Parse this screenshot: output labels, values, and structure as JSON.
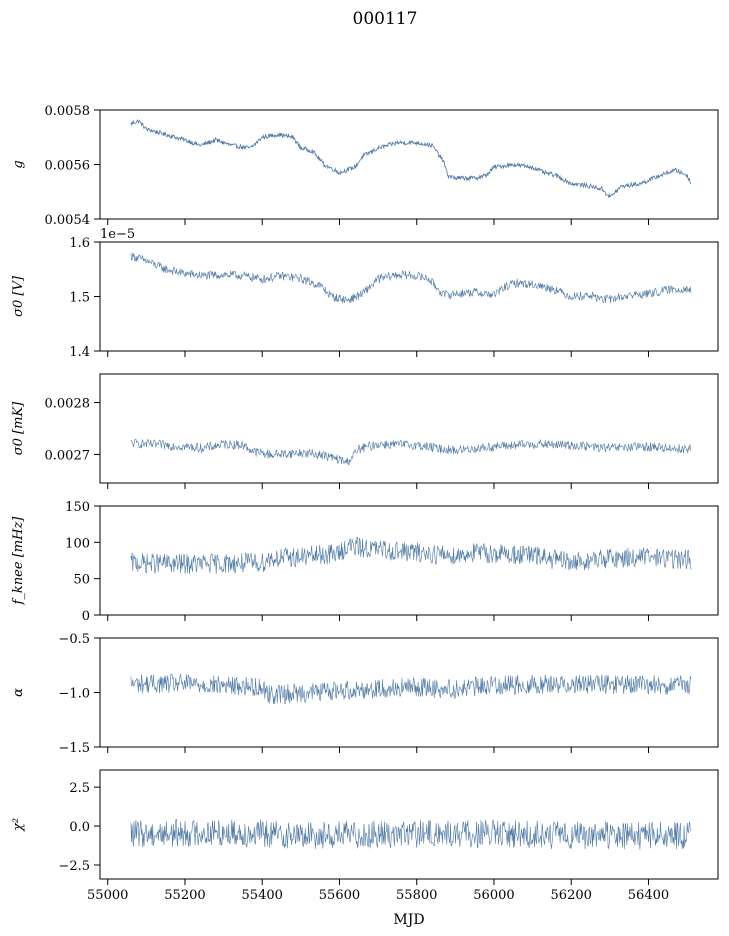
{
  "figure_title": "000117",
  "xlabel": "MJD",
  "xlim": [
    54980,
    56580
  ],
  "xticks": [
    55000,
    55200,
    55400,
    55600,
    55800,
    56000,
    56200,
    56400
  ],
  "series_color": "#4c77a5",
  "chart_data": [
    {
      "type": "line",
      "ylabel": "g",
      "ylim": [
        0.0054,
        0.0058
      ],
      "yticks": [
        {
          "v": 0.0054,
          "t": "0.0054"
        },
        {
          "v": 0.0056,
          "t": "0.0056"
        },
        {
          "v": 0.0058,
          "t": "0.0058"
        }
      ],
      "offset_text": "",
      "noise": 8e-06,
      "trend": [
        [
          55060,
          0.00575
        ],
        [
          55080,
          0.00576
        ],
        [
          55100,
          0.00573
        ],
        [
          55150,
          0.00571
        ],
        [
          55200,
          0.00569
        ],
        [
          55240,
          0.00567
        ],
        [
          55280,
          0.00569
        ],
        [
          55320,
          0.00567
        ],
        [
          55370,
          0.00566
        ],
        [
          55400,
          0.0057
        ],
        [
          55440,
          0.00571
        ],
        [
          55480,
          0.0057
        ],
        [
          55500,
          0.00566
        ],
        [
          55530,
          0.00565
        ],
        [
          55560,
          0.0056
        ],
        [
          55600,
          0.00557
        ],
        [
          55640,
          0.00559
        ],
        [
          55660,
          0.00563
        ],
        [
          55700,
          0.00566
        ],
        [
          55750,
          0.00568
        ],
        [
          55800,
          0.00568
        ],
        [
          55840,
          0.00567
        ],
        [
          55870,
          0.00561
        ],
        [
          55880,
          0.00556
        ],
        [
          55900,
          0.00555
        ],
        [
          55950,
          0.00555
        ],
        [
          55980,
          0.00556
        ],
        [
          56000,
          0.00559
        ],
        [
          56050,
          0.0056
        ],
        [
          56100,
          0.00559
        ],
        [
          56130,
          0.00557
        ],
        [
          56160,
          0.00556
        ],
        [
          56200,
          0.00553
        ],
        [
          56250,
          0.00552
        ],
        [
          56280,
          0.00551
        ],
        [
          56300,
          0.00548
        ],
        [
          56330,
          0.00552
        ],
        [
          56380,
          0.00553
        ],
        [
          56430,
          0.00556
        ],
        [
          56470,
          0.00558
        ],
        [
          56500,
          0.00556
        ],
        [
          56510,
          0.00553
        ]
      ]
    },
    {
      "type": "line",
      "ylabel": "σ0 [V]",
      "ylim": [
        1.4,
        1.6
      ],
      "yticks": [
        {
          "v": 1.4,
          "t": "1.4"
        },
        {
          "v": 1.5,
          "t": "1.5"
        },
        {
          "v": 1.6,
          "t": "1.6"
        }
      ],
      "offset_text": "1e−5",
      "noise": 0.008,
      "trend": [
        [
          55060,
          1.575
        ],
        [
          55100,
          1.565
        ],
        [
          55150,
          1.55
        ],
        [
          55200,
          1.542
        ],
        [
          55250,
          1.538
        ],
        [
          55300,
          1.54
        ],
        [
          55350,
          1.538
        ],
        [
          55400,
          1.532
        ],
        [
          55450,
          1.538
        ],
        [
          55500,
          1.533
        ],
        [
          55550,
          1.52
        ],
        [
          55580,
          1.5
        ],
        [
          55620,
          1.493
        ],
        [
          55660,
          1.505
        ],
        [
          55700,
          1.532
        ],
        [
          55750,
          1.54
        ],
        [
          55800,
          1.538
        ],
        [
          55830,
          1.533
        ],
        [
          55850,
          1.518
        ],
        [
          55870,
          1.503
        ],
        [
          55900,
          1.505
        ],
        [
          55950,
          1.508
        ],
        [
          56000,
          1.503
        ],
        [
          56030,
          1.518
        ],
        [
          56060,
          1.525
        ],
        [
          56100,
          1.522
        ],
        [
          56150,
          1.515
        ],
        [
          56200,
          1.5
        ],
        [
          56250,
          1.502
        ],
        [
          56280,
          1.495
        ],
        [
          56300,
          1.495
        ],
        [
          56350,
          1.502
        ],
        [
          56400,
          1.505
        ],
        [
          56450,
          1.512
        ],
        [
          56500,
          1.515
        ],
        [
          56510,
          1.51
        ]
      ]
    },
    {
      "type": "line",
      "ylabel": "σ0 [mK]",
      "ylim": [
        0.002645,
        0.002855
      ],
      "yticks": [
        {
          "v": 0.0027,
          "t": "0.0027"
        },
        {
          "v": 0.0028,
          "t": "0.0028"
        }
      ],
      "offset_text": "",
      "noise": 9e-06,
      "trend": [
        [
          55060,
          0.002722
        ],
        [
          55100,
          0.00272
        ],
        [
          55150,
          0.002718
        ],
        [
          55200,
          0.002715
        ],
        [
          55250,
          0.002712
        ],
        [
          55300,
          0.00272
        ],
        [
          55350,
          0.002718
        ],
        [
          55380,
          0.002705
        ],
        [
          55420,
          0.0027
        ],
        [
          55500,
          0.002703
        ],
        [
          55550,
          0.0027
        ],
        [
          55600,
          0.00269
        ],
        [
          55620,
          0.002685
        ],
        [
          55650,
          0.00271
        ],
        [
          55700,
          0.00272
        ],
        [
          55800,
          0.002718
        ],
        [
          55850,
          0.002712
        ],
        [
          55900,
          0.002708
        ],
        [
          56000,
          0.002715
        ],
        [
          56100,
          0.00272
        ],
        [
          56200,
          0.002718
        ],
        [
          56300,
          0.002712
        ],
        [
          56400,
          0.002715
        ],
        [
          56500,
          0.00271
        ],
        [
          56510,
          0.002712
        ]
      ]
    },
    {
      "type": "line",
      "ylabel": "f_knee [mHz]",
      "ylim": [
        0,
        150
      ],
      "yticks": [
        {
          "v": 0,
          "t": "0"
        },
        {
          "v": 50,
          "t": "50"
        },
        {
          "v": 100,
          "t": "100"
        },
        {
          "v": 150,
          "t": "150"
        }
      ],
      "offset_text": "",
      "noise": 14,
      "trend": [
        [
          55060,
          72
        ],
        [
          55200,
          70
        ],
        [
          55400,
          72
        ],
        [
          55420,
          78
        ],
        [
          55500,
          80
        ],
        [
          55600,
          85
        ],
        [
          55620,
          95
        ],
        [
          55700,
          90
        ],
        [
          55800,
          86
        ],
        [
          55900,
          82
        ],
        [
          55950,
          86
        ],
        [
          56100,
          82
        ],
        [
          56200,
          72
        ],
        [
          56300,
          78
        ],
        [
          56400,
          80
        ],
        [
          56510,
          76
        ]
      ]
    },
    {
      "type": "line",
      "ylabel": "α",
      "ylim": [
        -1.5,
        -0.5
      ],
      "yticks": [
        {
          "v": -1.5,
          "t": "−1.5"
        },
        {
          "v": -1.0,
          "t": "−1.0"
        },
        {
          "v": -0.5,
          "t": "−0.5"
        }
      ],
      "offset_text": "",
      "noise": 0.09,
      "trend": [
        [
          55060,
          -0.92
        ],
        [
          55200,
          -0.92
        ],
        [
          55400,
          -0.95
        ],
        [
          55420,
          -1.02
        ],
        [
          55600,
          -0.98
        ],
        [
          55800,
          -0.95
        ],
        [
          55900,
          -0.97
        ],
        [
          56000,
          -0.93
        ],
        [
          56200,
          -0.92
        ],
        [
          56400,
          -0.93
        ],
        [
          56510,
          -0.94
        ]
      ]
    },
    {
      "type": "line",
      "ylabel": "χ²",
      "ylim": [
        -3.4,
        3.6
      ],
      "yticks": [
        {
          "v": -2.5,
          "t": "−2.5"
        },
        {
          "v": 0.0,
          "t": "0.0"
        },
        {
          "v": 2.5,
          "t": "2.5"
        }
      ],
      "offset_text": "",
      "noise": 0.9,
      "trend": [
        [
          55060,
          -0.5
        ],
        [
          55300,
          -0.4
        ],
        [
          55500,
          -0.6
        ],
        [
          55800,
          -0.5
        ],
        [
          56000,
          -0.5
        ],
        [
          56200,
          -0.6
        ],
        [
          56510,
          -0.6
        ]
      ]
    }
  ]
}
